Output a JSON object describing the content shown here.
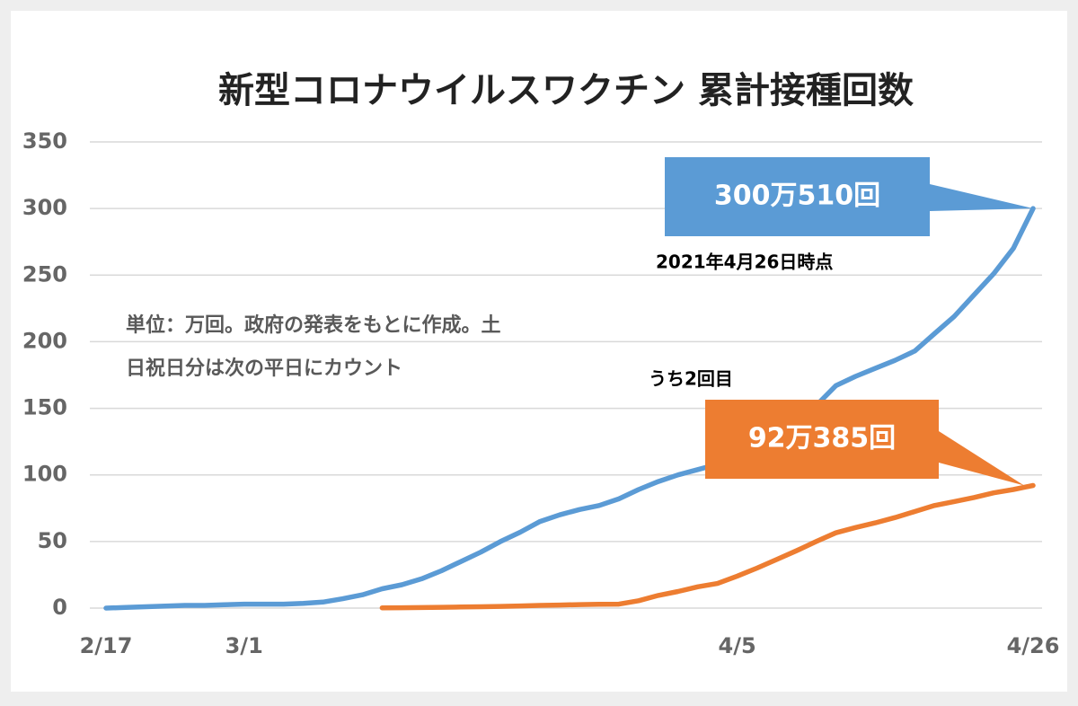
{
  "chart_data": {
    "type": "line",
    "title": "新型コロナウイルスワクチン 累計接種回数",
    "note": [
      "単位：万回。政府の発表をもとに作成。土",
      "日祝日分は次の平日にカウント"
    ],
    "annotations": [
      "2021年4月26日時点",
      "うち2回目"
    ],
    "categories": [
      "2/17",
      null,
      null,
      null,
      null,
      null,
      null,
      "3/1",
      null,
      null,
      null,
      null,
      null,
      null,
      null,
      null,
      null,
      null,
      null,
      null,
      null,
      null,
      null,
      null,
      null,
      null,
      null,
      null,
      null,
      null,
      null,
      null,
      "4/5",
      null,
      null,
      null,
      null,
      null,
      null,
      null,
      null,
      null,
      null,
      null,
      null,
      null,
      null,
      "4/26"
    ],
    "series": [
      {
        "color": "#5b9bd5",
        "end_label": "300万510回",
        "values": [
          0,
          0.5,
          1,
          1.5,
          2,
          2,
          2.5,
          3,
          3,
          3,
          3.5,
          4.5,
          7,
          10,
          14.5,
          17.5,
          22,
          28,
          35,
          42,
          50,
          57,
          65,
          70,
          74,
          77,
          82,
          89,
          95,
          100,
          104,
          108,
          113,
          120,
          128,
          140,
          152,
          167,
          174,
          180,
          186,
          193,
          206,
          219,
          235,
          251,
          270,
          300.051
        ]
      },
      {
        "color": "#ed7d31",
        "end_label": "92万385回",
        "values": [
          null,
          null,
          null,
          null,
          null,
          null,
          null,
          null,
          null,
          null,
          null,
          null,
          null,
          null,
          0.2,
          0.3,
          0.4,
          0.6,
          0.8,
          1,
          1.3,
          1.6,
          2,
          2.3,
          2.6,
          2.8,
          3,
          5.5,
          9.5,
          12.5,
          16,
          18.5,
          24,
          30,
          36.5,
          43,
          50,
          56.5,
          60.5,
          64,
          68,
          72.5,
          77,
          80,
          83,
          86.5,
          89,
          92.0385
        ]
      }
    ],
    "ylim": [
      0,
      350
    ],
    "yticks": [
      0,
      50,
      100,
      150,
      200,
      250,
      300,
      350
    ],
    "grid": true
  }
}
